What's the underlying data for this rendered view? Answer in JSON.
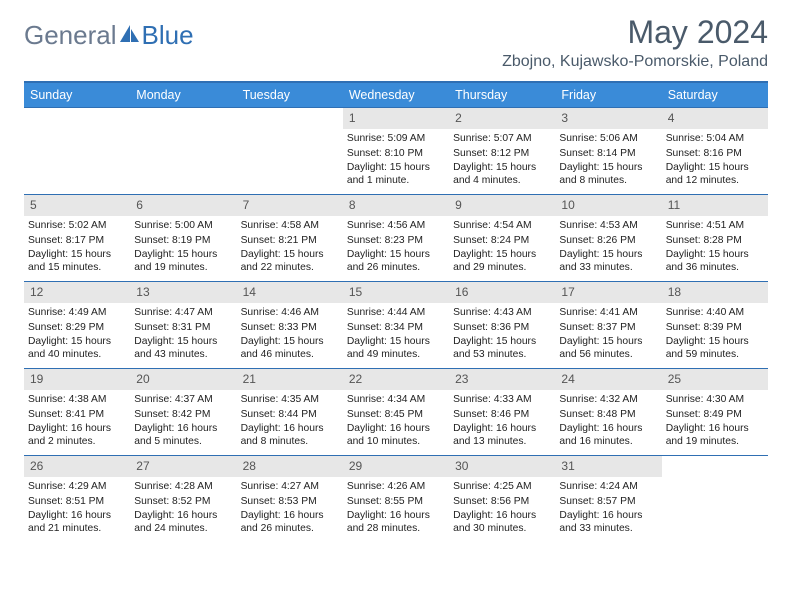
{
  "logo": {
    "text_gray": "General",
    "text_blue": "Blue"
  },
  "title": "May 2024",
  "location": "Zbojno, Kujawsko-Pomorskie, Poland",
  "colors": {
    "header_bg": "#3a8bd8",
    "header_border": "#2f6fb3",
    "daynum_bg": "#e7e7e7",
    "logo_gray": "#6b7a8f",
    "logo_blue": "#2f6fb3",
    "text": "#4a5a6a"
  },
  "weekdays": [
    "Sunday",
    "Monday",
    "Tuesday",
    "Wednesday",
    "Thursday",
    "Friday",
    "Saturday"
  ],
  "weeks": [
    [
      {
        "n": "",
        "sr": "",
        "ss": "",
        "dl": ""
      },
      {
        "n": "",
        "sr": "",
        "ss": "",
        "dl": ""
      },
      {
        "n": "",
        "sr": "",
        "ss": "",
        "dl": ""
      },
      {
        "n": "1",
        "sr": "Sunrise: 5:09 AM",
        "ss": "Sunset: 8:10 PM",
        "dl": "Daylight: 15 hours and 1 minute."
      },
      {
        "n": "2",
        "sr": "Sunrise: 5:07 AM",
        "ss": "Sunset: 8:12 PM",
        "dl": "Daylight: 15 hours and 4 minutes."
      },
      {
        "n": "3",
        "sr": "Sunrise: 5:06 AM",
        "ss": "Sunset: 8:14 PM",
        "dl": "Daylight: 15 hours and 8 minutes."
      },
      {
        "n": "4",
        "sr": "Sunrise: 5:04 AM",
        "ss": "Sunset: 8:16 PM",
        "dl": "Daylight: 15 hours and 12 minutes."
      }
    ],
    [
      {
        "n": "5",
        "sr": "Sunrise: 5:02 AM",
        "ss": "Sunset: 8:17 PM",
        "dl": "Daylight: 15 hours and 15 minutes."
      },
      {
        "n": "6",
        "sr": "Sunrise: 5:00 AM",
        "ss": "Sunset: 8:19 PM",
        "dl": "Daylight: 15 hours and 19 minutes."
      },
      {
        "n": "7",
        "sr": "Sunrise: 4:58 AM",
        "ss": "Sunset: 8:21 PM",
        "dl": "Daylight: 15 hours and 22 minutes."
      },
      {
        "n": "8",
        "sr": "Sunrise: 4:56 AM",
        "ss": "Sunset: 8:23 PM",
        "dl": "Daylight: 15 hours and 26 minutes."
      },
      {
        "n": "9",
        "sr": "Sunrise: 4:54 AM",
        "ss": "Sunset: 8:24 PM",
        "dl": "Daylight: 15 hours and 29 minutes."
      },
      {
        "n": "10",
        "sr": "Sunrise: 4:53 AM",
        "ss": "Sunset: 8:26 PM",
        "dl": "Daylight: 15 hours and 33 minutes."
      },
      {
        "n": "11",
        "sr": "Sunrise: 4:51 AM",
        "ss": "Sunset: 8:28 PM",
        "dl": "Daylight: 15 hours and 36 minutes."
      }
    ],
    [
      {
        "n": "12",
        "sr": "Sunrise: 4:49 AM",
        "ss": "Sunset: 8:29 PM",
        "dl": "Daylight: 15 hours and 40 minutes."
      },
      {
        "n": "13",
        "sr": "Sunrise: 4:47 AM",
        "ss": "Sunset: 8:31 PM",
        "dl": "Daylight: 15 hours and 43 minutes."
      },
      {
        "n": "14",
        "sr": "Sunrise: 4:46 AM",
        "ss": "Sunset: 8:33 PM",
        "dl": "Daylight: 15 hours and 46 minutes."
      },
      {
        "n": "15",
        "sr": "Sunrise: 4:44 AM",
        "ss": "Sunset: 8:34 PM",
        "dl": "Daylight: 15 hours and 49 minutes."
      },
      {
        "n": "16",
        "sr": "Sunrise: 4:43 AM",
        "ss": "Sunset: 8:36 PM",
        "dl": "Daylight: 15 hours and 53 minutes."
      },
      {
        "n": "17",
        "sr": "Sunrise: 4:41 AM",
        "ss": "Sunset: 8:37 PM",
        "dl": "Daylight: 15 hours and 56 minutes."
      },
      {
        "n": "18",
        "sr": "Sunrise: 4:40 AM",
        "ss": "Sunset: 8:39 PM",
        "dl": "Daylight: 15 hours and 59 minutes."
      }
    ],
    [
      {
        "n": "19",
        "sr": "Sunrise: 4:38 AM",
        "ss": "Sunset: 8:41 PM",
        "dl": "Daylight: 16 hours and 2 minutes."
      },
      {
        "n": "20",
        "sr": "Sunrise: 4:37 AM",
        "ss": "Sunset: 8:42 PM",
        "dl": "Daylight: 16 hours and 5 minutes."
      },
      {
        "n": "21",
        "sr": "Sunrise: 4:35 AM",
        "ss": "Sunset: 8:44 PM",
        "dl": "Daylight: 16 hours and 8 minutes."
      },
      {
        "n": "22",
        "sr": "Sunrise: 4:34 AM",
        "ss": "Sunset: 8:45 PM",
        "dl": "Daylight: 16 hours and 10 minutes."
      },
      {
        "n": "23",
        "sr": "Sunrise: 4:33 AM",
        "ss": "Sunset: 8:46 PM",
        "dl": "Daylight: 16 hours and 13 minutes."
      },
      {
        "n": "24",
        "sr": "Sunrise: 4:32 AM",
        "ss": "Sunset: 8:48 PM",
        "dl": "Daylight: 16 hours and 16 minutes."
      },
      {
        "n": "25",
        "sr": "Sunrise: 4:30 AM",
        "ss": "Sunset: 8:49 PM",
        "dl": "Daylight: 16 hours and 19 minutes."
      }
    ],
    [
      {
        "n": "26",
        "sr": "Sunrise: 4:29 AM",
        "ss": "Sunset: 8:51 PM",
        "dl": "Daylight: 16 hours and 21 minutes."
      },
      {
        "n": "27",
        "sr": "Sunrise: 4:28 AM",
        "ss": "Sunset: 8:52 PM",
        "dl": "Daylight: 16 hours and 24 minutes."
      },
      {
        "n": "28",
        "sr": "Sunrise: 4:27 AM",
        "ss": "Sunset: 8:53 PM",
        "dl": "Daylight: 16 hours and 26 minutes."
      },
      {
        "n": "29",
        "sr": "Sunrise: 4:26 AM",
        "ss": "Sunset: 8:55 PM",
        "dl": "Daylight: 16 hours and 28 minutes."
      },
      {
        "n": "30",
        "sr": "Sunrise: 4:25 AM",
        "ss": "Sunset: 8:56 PM",
        "dl": "Daylight: 16 hours and 30 minutes."
      },
      {
        "n": "31",
        "sr": "Sunrise: 4:24 AM",
        "ss": "Sunset: 8:57 PM",
        "dl": "Daylight: 16 hours and 33 minutes."
      },
      {
        "n": "",
        "sr": "",
        "ss": "",
        "dl": ""
      }
    ]
  ]
}
